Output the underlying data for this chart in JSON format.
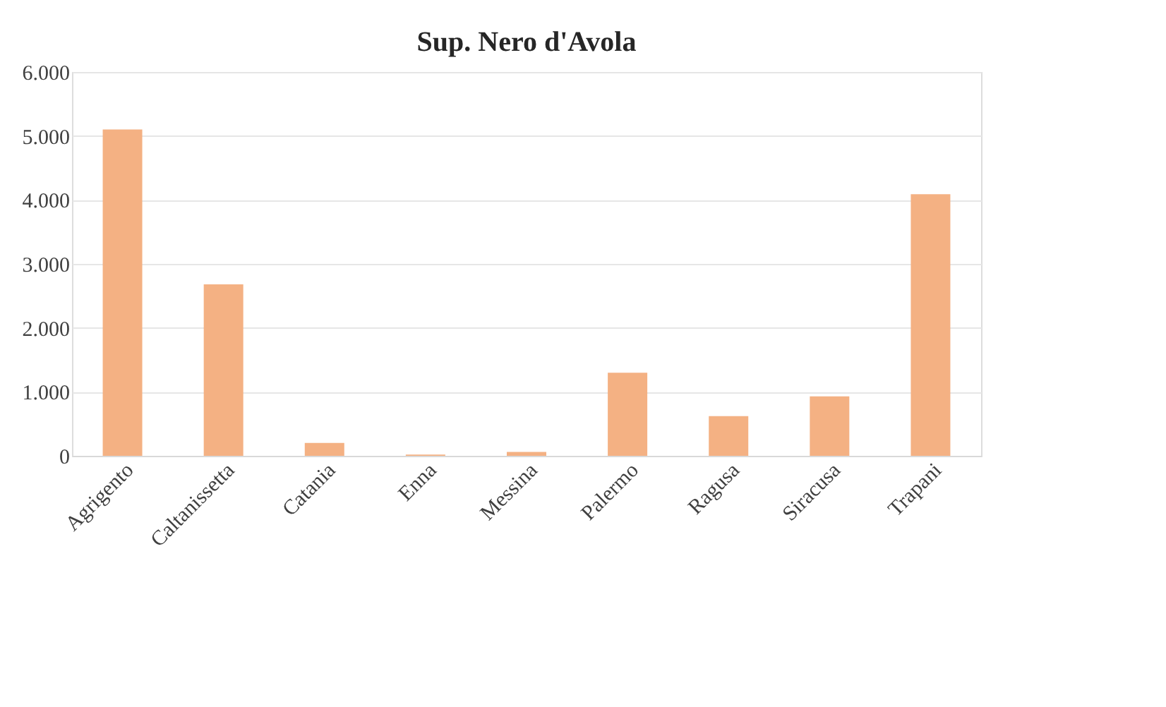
{
  "chart_data": {
    "type": "bar",
    "title": "Sup. Nero d'Avola",
    "categories": [
      "Agrigento",
      "Caltanissetta",
      "Catania",
      "Enna",
      "Messina",
      "Palermo",
      "Ragusa",
      "Siracusa",
      "Trapani"
    ],
    "values": [
      5100,
      2680,
      200,
      20,
      60,
      1300,
      620,
      930,
      4090
    ],
    "color": "#f4b183",
    "ylim": [
      0,
      6000
    ],
    "yticks": [
      {
        "value": 0,
        "label": "0"
      },
      {
        "value": 1000,
        "label": "1.000"
      },
      {
        "value": 2000,
        "label": "2.000"
      },
      {
        "value": 3000,
        "label": "3.000"
      },
      {
        "value": 4000,
        "label": "4.000"
      },
      {
        "value": 5000,
        "label": "5.000"
      },
      {
        "value": 6000,
        "label": "6.000"
      }
    ],
    "grid": "y"
  }
}
